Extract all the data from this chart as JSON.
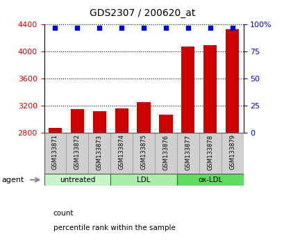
{
  "title": "GDS2307 / 200620_at",
  "samples": [
    "GSM133871",
    "GSM133872",
    "GSM133873",
    "GSM133874",
    "GSM133875",
    "GSM133876",
    "GSM133877",
    "GSM133878",
    "GSM133879"
  ],
  "counts": [
    2870,
    3150,
    3120,
    3160,
    3250,
    3070,
    4080,
    4100,
    4330
  ],
  "percentiles": [
    97,
    97,
    97,
    97,
    97,
    97,
    97,
    97,
    97
  ],
  "groups": [
    {
      "label": "untreated",
      "start": 0,
      "end": 3,
      "color": "#c8f5c8"
    },
    {
      "label": "LDL",
      "start": 3,
      "end": 6,
      "color": "#a8eea8"
    },
    {
      "label": "ox-LDL",
      "start": 6,
      "end": 9,
      "color": "#60dd60"
    }
  ],
  "ylim_left": [
    2800,
    4400
  ],
  "yticks_left": [
    2800,
    3200,
    3600,
    4000,
    4400
  ],
  "ylim_right": [
    0,
    100
  ],
  "yticks_right": [
    0,
    25,
    50,
    75,
    100
  ],
  "yright_labels": [
    "0",
    "25",
    "50",
    "75",
    "100%"
  ],
  "bar_color": "#cc0000",
  "dot_color": "#0000cc",
  "bar_width": 0.6,
  "grid_color": "#000000",
  "tick_color_left": "#cc0000",
  "tick_color_right": "#0000cc",
  "bg_color": "#ffffff",
  "plot_bg": "#ffffff",
  "sample_box_color": "#d0d0d0",
  "agent_label": "agent",
  "legend_count_label": "count",
  "legend_pct_label": "percentile rank within the sample"
}
